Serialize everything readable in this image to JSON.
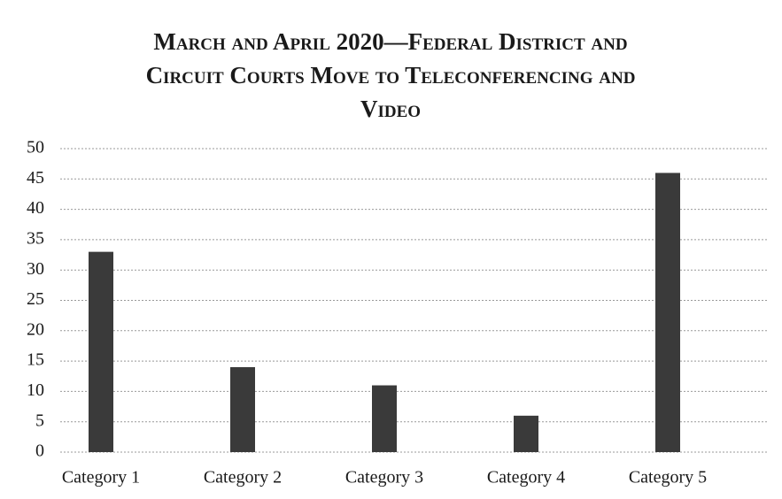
{
  "chart_data": {
    "type": "bar",
    "title": "March and April 2020—Federal District and Circuit Courts Move to Teleconferencing and Video",
    "categories": [
      "Category 1",
      "Category 2",
      "Category 3",
      "Category 4",
      "Category 5"
    ],
    "values": [
      33,
      14,
      11,
      6,
      46
    ],
    "color": "#3a3a3a",
    "ylim": [
      0,
      50
    ],
    "yticks": [
      0,
      5,
      10,
      15,
      20,
      25,
      30,
      35,
      40,
      45,
      50
    ],
    "grid": true
  }
}
